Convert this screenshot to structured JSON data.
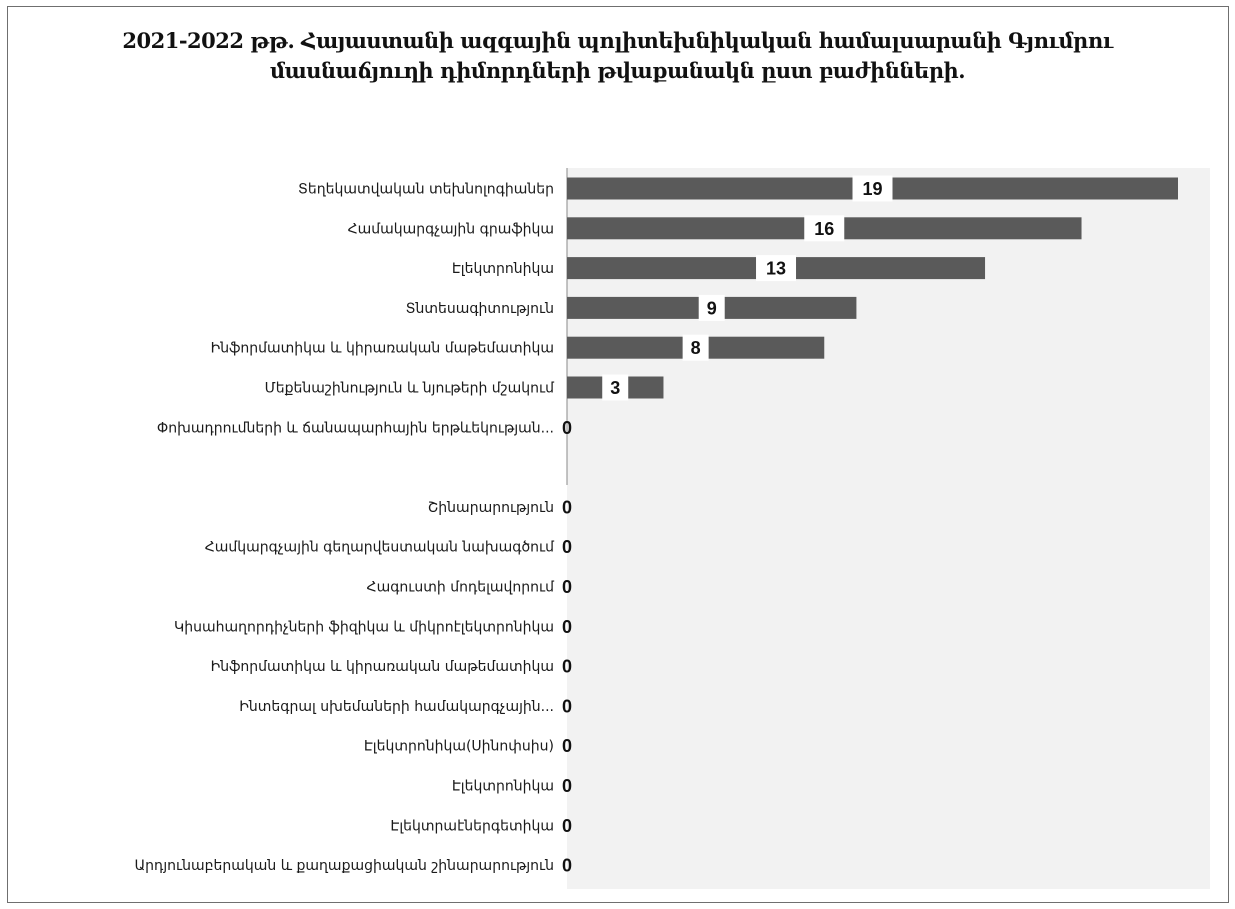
{
  "title_lines": [
    "2021-2022 թթ. Հայաստանի ազգային պոլիտեխնիկական համալսարանի Գյումրու",
    "մասնաճյուղի դիմորդների թվաքանակն ըստ բաժինների."
  ],
  "chart_data": {
    "type": "bar",
    "orientation": "horizontal",
    "title": "2021-2022 թթ. Հայաստանի ազգային պոլիտեխնիկական համալսարանի Գյումրու մասնաճյուղի դիմորդների թվաքանակն ըստ բաժինների.",
    "xlabel": "",
    "ylabel": "",
    "xlim": [
      0,
      19
    ],
    "grid": false,
    "legend": "none",
    "bar_color": "#5a5a5a",
    "plot_background": "#f2f2f2",
    "categories": [
      "Տեղեկատվական տեխնոլոգիաներ",
      "Համակարգչային գրաֆիկա",
      "Էլեկտրոնիկա",
      "Տնտեսագիտություն",
      "Ինֆորմատիկա և կիրառական մաթեմատիկա",
      "Մեքենաշինություն և նյութերի մշակում",
      "Փոխադրումների և ճանապարհային երթևեկության...",
      "",
      "Շինարարություն",
      "Համկարգչային գեղարվեստական նախագծում",
      "Հագուստի մոդելավորում",
      "Կիսահաղորդիչների ֆիզիկա և միկրոէլեկտրոնիկա",
      "Ինֆորմատիկա և կիրառական մաթեմատիկա",
      "Ինտեգրալ սխեմաների համակարգչային...",
      "Էլեկտրոնիկա(Սինոփսիս)",
      "Էլեկտրոնիկա",
      "Էլեկտրաէներգետիկա",
      "Արդյունաբերական և քաղաքացիական շինարարություն"
    ],
    "values": [
      19,
      16,
      13,
      9,
      8,
      3,
      0,
      null,
      0,
      0,
      0,
      0,
      0,
      0,
      0,
      0,
      0,
      0
    ],
    "data_labels": [
      "19",
      "16",
      "13",
      "9",
      "8",
      "3",
      "0",
      "",
      "0",
      "0",
      "0",
      "0",
      "0",
      "0",
      "0",
      "0",
      "0",
      "0"
    ]
  }
}
